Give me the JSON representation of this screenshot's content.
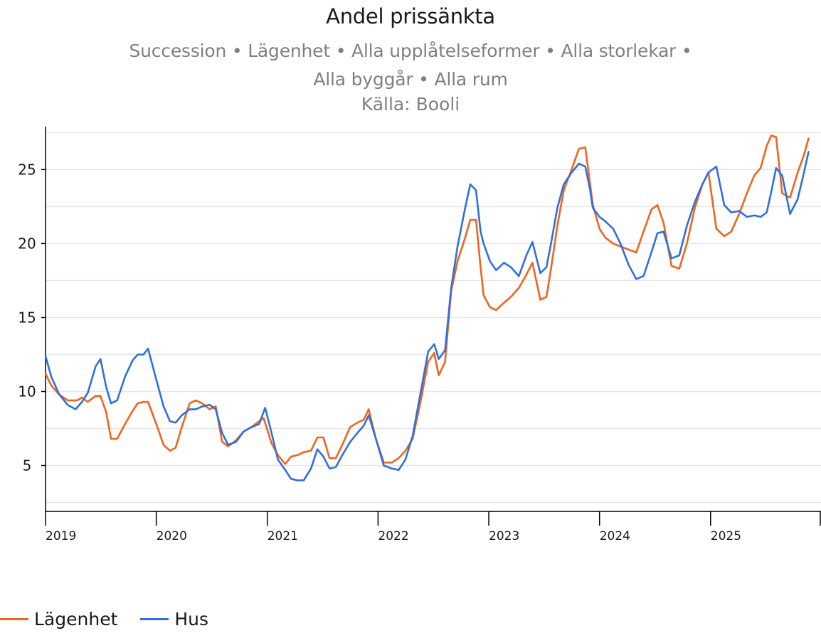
{
  "header": {
    "title": "Andel prissänkta",
    "subtitle": "Succession • Lägenhet • Alla upplåtelseformer • Alla storlekar • Alla byggår • Alla rum",
    "source": "Källa: Booli"
  },
  "legend": {
    "items": [
      {
        "label": "Lägenhet",
        "color": "#f0641e"
      },
      {
        "label": "Hus",
        "color": "#2f6fdf"
      }
    ]
  },
  "chart_data": {
    "type": "line",
    "title": "Andel prissänkta",
    "xlabel": "",
    "ylabel": "",
    "x_range": [
      "2019-01-01",
      "2025-12-31"
    ],
    "ylim": [
      1.9,
      27.9
    ],
    "y_ticks": [
      5,
      10,
      15,
      20,
      25
    ],
    "x_ticks": [
      "2019",
      "2020",
      "2021",
      "2022",
      "2023",
      "2024",
      "2025"
    ],
    "grid": true,
    "legend_position": "bottom-left",
    "series": [
      {
        "name": "Lägenhet",
        "color": "#f0641e",
        "x": [
          "2019-01-01",
          "2019-01-20",
          "2019-02-15",
          "2019-03-15",
          "2019-04-15",
          "2019-05-01",
          "2019-05-20",
          "2019-06-15",
          "2019-07-01",
          "2019-07-20",
          "2019-08-05",
          "2019-08-25",
          "2019-09-20",
          "2019-10-15",
          "2019-11-01",
          "2019-11-20",
          "2019-12-05",
          "2020-01-01",
          "2020-01-25",
          "2020-02-15",
          "2020-03-05",
          "2020-03-25",
          "2020-04-20",
          "2020-05-10",
          "2020-06-01",
          "2020-06-25",
          "2020-07-15",
          "2020-08-05",
          "2020-08-25",
          "2020-09-20",
          "2020-10-15",
          "2020-11-10",
          "2020-12-05",
          "2020-12-20",
          "2021-01-15",
          "2021-02-05",
          "2021-03-01",
          "2021-03-20",
          "2021-04-10",
          "2021-05-01",
          "2021-05-25",
          "2021-06-15",
          "2021-07-05",
          "2021-07-25",
          "2021-08-15",
          "2021-09-05",
          "2021-10-01",
          "2021-10-25",
          "2021-11-15",
          "2021-12-01",
          "2021-12-25",
          "2022-01-20",
          "2022-02-15",
          "2022-03-10",
          "2022-04-01",
          "2022-04-25",
          "2022-05-20",
          "2022-06-15",
          "2022-07-05",
          "2022-07-20",
          "2022-08-10",
          "2022-08-30",
          "2022-09-20",
          "2022-10-15",
          "2022-11-01",
          "2022-11-20",
          "2022-12-05",
          "2022-12-15",
          "2023-01-05",
          "2023-01-25",
          "2023-02-20",
          "2023-03-15",
          "2023-04-10",
          "2023-05-05",
          "2023-05-25",
          "2023-06-20",
          "2023-07-10",
          "2023-07-25",
          "2023-08-15",
          "2023-09-05",
          "2023-10-01",
          "2023-10-25",
          "2023-11-15",
          "2023-12-01",
          "2023-12-10",
          "2024-01-01",
          "2024-01-20",
          "2024-02-15",
          "2024-03-10",
          "2024-04-05",
          "2024-05-01",
          "2024-05-25",
          "2024-06-20",
          "2024-07-10",
          "2024-07-30",
          "2024-08-25",
          "2024-09-20",
          "2024-10-15",
          "2024-11-10",
          "2024-12-05",
          "2024-12-25",
          "2025-01-20",
          "2025-02-15",
          "2025-03-10",
          "2025-04-05",
          "2025-05-01",
          "2025-05-25",
          "2025-06-15",
          "2025-07-05",
          "2025-07-20",
          "2025-08-05",
          "2025-08-25",
          "2025-09-20",
          "2025-10-15",
          "2025-11-05",
          "2025-11-20"
        ],
        "values": [
          11.2,
          10.4,
          9.8,
          9.4,
          9.4,
          9.6,
          9.3,
          9.7,
          9.7,
          8.6,
          6.8,
          6.8,
          7.8,
          8.7,
          9.2,
          9.3,
          9.3,
          7.8,
          6.4,
          6.0,
          6.2,
          7.6,
          9.2,
          9.4,
          9.2,
          8.8,
          9.0,
          6.6,
          6.3,
          6.7,
          7.3,
          7.6,
          8.0,
          8.2,
          6.5,
          5.7,
          5.1,
          5.6,
          5.7,
          5.9,
          6.0,
          6.9,
          6.9,
          5.5,
          5.5,
          6.4,
          7.6,
          7.9,
          8.1,
          8.8,
          6.8,
          5.2,
          5.2,
          5.5,
          6.0,
          6.8,
          9.2,
          12.0,
          12.6,
          11.1,
          12.0,
          16.8,
          18.8,
          20.4,
          21.6,
          21.6,
          18.4,
          16.5,
          15.7,
          15.5,
          16.0,
          16.4,
          17.0,
          17.9,
          18.7,
          16.2,
          16.4,
          18.3,
          21.2,
          23.6,
          25.0,
          26.4,
          26.5,
          24.0,
          22.6,
          21.0,
          20.4,
          20.0,
          19.8,
          19.6,
          19.4,
          20.8,
          22.3,
          22.6,
          21.4,
          18.5,
          18.3,
          20.0,
          22.4,
          24.0,
          24.8,
          21.0,
          20.5,
          20.8,
          22.0,
          23.4,
          24.6,
          25.1,
          26.6,
          27.3,
          27.2,
          23.4,
          23.1,
          24.8,
          26.0,
          27.1
        ]
      },
      {
        "name": "Hus",
        "color": "#2f6fdf",
        "x": [
          "2019-01-01",
          "2019-01-20",
          "2019-02-15",
          "2019-03-15",
          "2019-04-10",
          "2019-05-01",
          "2019-05-20",
          "2019-06-15",
          "2019-07-01",
          "2019-07-20",
          "2019-08-05",
          "2019-08-25",
          "2019-09-20",
          "2019-10-15",
          "2019-11-01",
          "2019-11-20",
          "2019-12-05",
          "2020-01-01",
          "2020-01-25",
          "2020-02-15",
          "2020-03-05",
          "2020-03-25",
          "2020-04-20",
          "2020-05-10",
          "2020-06-01",
          "2020-06-25",
          "2020-07-15",
          "2020-08-05",
          "2020-08-25",
          "2020-09-20",
          "2020-10-15",
          "2020-11-10",
          "2020-12-05",
          "2020-12-25",
          "2021-01-15",
          "2021-02-05",
          "2021-03-01",
          "2021-03-20",
          "2021-04-10",
          "2021-05-01",
          "2021-05-25",
          "2021-06-15",
          "2021-07-05",
          "2021-07-25",
          "2021-08-15",
          "2021-09-05",
          "2021-10-01",
          "2021-10-25",
          "2021-11-15",
          "2021-12-01",
          "2021-12-25",
          "2022-01-20",
          "2022-02-15",
          "2022-03-10",
          "2022-04-01",
          "2022-04-25",
          "2022-05-20",
          "2022-06-15",
          "2022-07-05",
          "2022-07-20",
          "2022-08-10",
          "2022-08-30",
          "2022-09-20",
          "2022-10-15",
          "2022-11-01",
          "2022-11-20",
          "2022-12-05",
          "2022-12-15",
          "2023-01-05",
          "2023-01-25",
          "2023-02-20",
          "2023-03-15",
          "2023-04-10",
          "2023-05-05",
          "2023-05-25",
          "2023-06-20",
          "2023-07-10",
          "2023-07-25",
          "2023-08-15",
          "2023-09-05",
          "2023-10-01",
          "2023-10-25",
          "2023-11-15",
          "2023-12-01",
          "2023-12-10",
          "2024-01-01",
          "2024-01-20",
          "2024-02-15",
          "2024-03-10",
          "2024-04-05",
          "2024-05-01",
          "2024-05-25",
          "2024-06-20",
          "2024-07-10",
          "2024-07-30",
          "2024-08-25",
          "2024-09-20",
          "2024-10-15",
          "2024-11-10",
          "2024-12-05",
          "2024-12-25",
          "2025-01-20",
          "2025-02-15",
          "2025-03-10",
          "2025-04-05",
          "2025-05-01",
          "2025-05-25",
          "2025-06-15",
          "2025-07-05",
          "2025-07-20",
          "2025-08-05",
          "2025-08-25",
          "2025-09-20",
          "2025-10-15",
          "2025-11-05",
          "2025-11-20"
        ],
        "values": [
          12.4,
          11.0,
          9.8,
          9.1,
          8.8,
          9.3,
          9.9,
          11.7,
          12.2,
          10.3,
          9.2,
          9.4,
          11.0,
          12.1,
          12.5,
          12.5,
          12.9,
          10.8,
          9.0,
          8.0,
          7.9,
          8.4,
          8.8,
          8.8,
          9.0,
          9.1,
          8.8,
          7.2,
          6.4,
          6.6,
          7.3,
          7.6,
          7.8,
          8.9,
          7.2,
          5.4,
          4.7,
          4.1,
          4.0,
          4.0,
          4.8,
          6.1,
          5.6,
          4.8,
          4.9,
          5.7,
          6.6,
          7.2,
          7.7,
          8.4,
          6.8,
          5.0,
          4.8,
          4.7,
          5.4,
          7.0,
          9.8,
          12.7,
          13.2,
          12.2,
          12.8,
          17.0,
          19.8,
          22.4,
          24.0,
          23.6,
          20.8,
          20.0,
          18.8,
          18.2,
          18.7,
          18.4,
          17.8,
          19.2,
          20.1,
          18.0,
          18.4,
          20.0,
          22.4,
          24.0,
          24.8,
          25.4,
          25.2,
          23.6,
          22.4,
          21.8,
          21.5,
          21.0,
          20.0,
          18.6,
          17.6,
          17.8,
          19.4,
          20.7,
          20.8,
          19.0,
          19.2,
          21.2,
          22.8,
          24.0,
          24.8,
          25.2,
          22.6,
          22.1,
          22.2,
          21.8,
          21.9,
          21.8,
          22.1,
          23.5,
          25.1,
          24.6,
          22.0,
          23.0,
          24.8,
          26.2
        ]
      }
    ]
  }
}
